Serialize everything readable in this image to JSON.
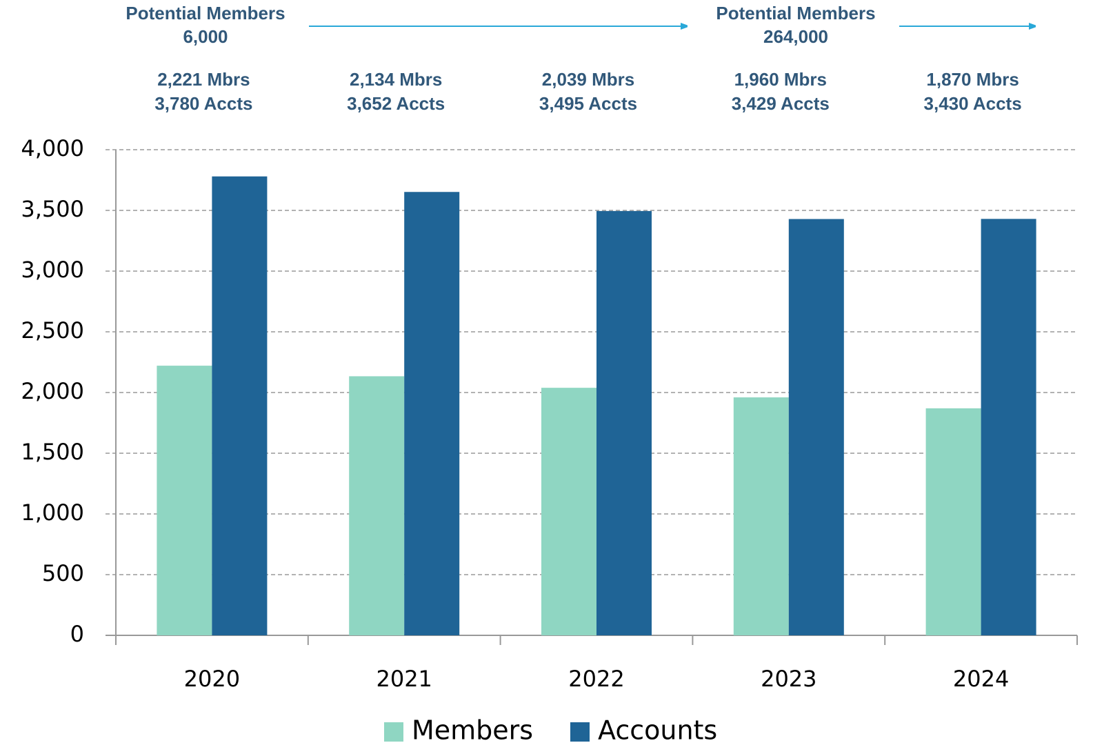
{
  "chart_data": {
    "type": "bar",
    "categories": [
      "2020",
      "2021",
      "2022",
      "2023",
      "2024"
    ],
    "series": [
      {
        "name": "Members",
        "color": "#8fd6c2",
        "values": [
          2221,
          2134,
          2039,
          1960,
          1870
        ],
        "value_labels": [
          "2,221 Mbrs",
          "2,134 Mbrs",
          "2,039 Mbrs",
          "1,960 Mbrs",
          "1,870 Mbrs"
        ]
      },
      {
        "name": "Accounts",
        "color": "#1f6496",
        "values": [
          3780,
          3652,
          3495,
          3429,
          3430
        ],
        "value_labels": [
          "3,780 Accts",
          "3,652 Accts",
          "3,495 Accts",
          "3,429 Accts",
          "3,430 Accts"
        ]
      }
    ],
    "annotations": [
      {
        "lines": [
          "Potential Members",
          "6,000"
        ]
      },
      {
        "lines": [
          "Potential Members",
          "264,000"
        ]
      }
    ],
    "ylim": [
      0,
      4000
    ],
    "yticks": [
      0,
      500,
      {
        "value": 1000,
        "label": "1,000"
      },
      {
        "value": 1500,
        "label": "1,500"
      },
      {
        "value": 2000,
        "label": "2,000"
      },
      {
        "value": 2500,
        "label": "2,500"
      },
      {
        "value": 3000,
        "label": "3,000"
      },
      {
        "value": 3500,
        "label": "3,500"
      },
      {
        "value": 4000,
        "label": "4,000"
      }
    ],
    "grid": true,
    "legend": "bottom"
  }
}
